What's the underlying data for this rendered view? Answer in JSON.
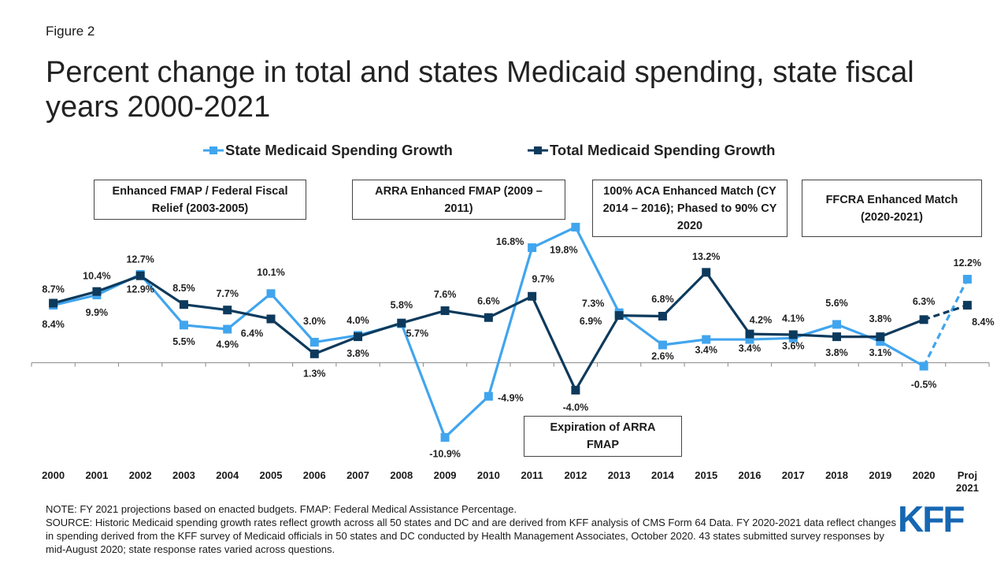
{
  "chart_data": {
    "type": "line",
    "figure_label": "Figure 2",
    "title": "Percent change in total and states Medicaid spending, state fiscal years 2000-2021",
    "categories": [
      "2000",
      "2001",
      "2002",
      "2003",
      "2004",
      "2005",
      "2006",
      "2007",
      "2008",
      "2009",
      "2010",
      "2011",
      "2012",
      "2013",
      "2014",
      "2015",
      "2016",
      "2017",
      "2018",
      "2019",
      "2020",
      "Proj 2021"
    ],
    "series": [
      {
        "name": "State Medicaid Spending Growth",
        "color": "#41a5ee",
        "values": [
          8.4,
          9.9,
          12.9,
          5.5,
          4.9,
          10.1,
          3.0,
          4.0,
          5.7,
          -10.9,
          -4.9,
          16.8,
          19.8,
          7.3,
          2.6,
          3.4,
          3.4,
          3.6,
          5.6,
          3.1,
          -0.5,
          12.2
        ],
        "value_labels": [
          "8.4%",
          "9.9%",
          "12.9%",
          "5.5%",
          "4.9%",
          "10.1%",
          "3.0%",
          "4.0%",
          "5.7%",
          "-10.9%",
          "-4.9%",
          "16.8%",
          "19.8%",
          "7.3%",
          "2.6%",
          "3.4%",
          "3.4%",
          "3.6%",
          "5.6%",
          "3.1%",
          "-0.5%",
          "12.2%"
        ]
      },
      {
        "name": "Total Medicaid Spending Growth",
        "color": "#0d3a5c",
        "values": [
          8.7,
          10.4,
          12.7,
          8.5,
          7.7,
          6.4,
          1.3,
          3.8,
          5.8,
          7.6,
          6.6,
          9.7,
          -4.0,
          6.9,
          6.8,
          13.2,
          4.2,
          4.1,
          3.8,
          3.8,
          6.3,
          8.4
        ],
        "value_labels": [
          "8.7%",
          "10.4%",
          "12.7%",
          "8.5%",
          "7.7%",
          "6.4%",
          "1.3%",
          "3.8%",
          "5.8%",
          "7.6%",
          "6.6%",
          "9.7%",
          "-4.0%",
          "6.9%",
          "6.8%",
          "13.2%",
          "4.2%",
          "4.1%",
          "3.8%",
          "3.8%",
          "6.3%",
          "8.4%"
        ]
      }
    ],
    "dashed_last_segment": true,
    "ylim": [
      -12,
      21
    ],
    "annotations": [
      "Enhanced FMAP / Federal Fiscal Relief (2003-2005)",
      "ARRA Enhanced FMAP (2009 – 2011)",
      "100% ACA Enhanced Match (CY 2014 – 2016); Phased to 90% CY 2020",
      "FFCRA Enhanced Match (2020-2021)",
      "Expiration of ARRA FMAP"
    ],
    "note": "NOTE: FY 2021 projections based on enacted budgets. FMAP: Federal Medical Assistance Percentage.",
    "source": "SOURCE: Historic Medicaid spending growth rates reflect growth across all 50 states and DC and are derived from KFF analysis of CMS Form 64 Data. FY 2020-2021 data reflect changes in spending derived from the KFF survey of Medicaid officials in 50 states and DC conducted by Health Management Associates, October 2020. 43 states submitted survey responses by mid-August 2020; state response rates varied across questions.",
    "logo": "KFF"
  }
}
